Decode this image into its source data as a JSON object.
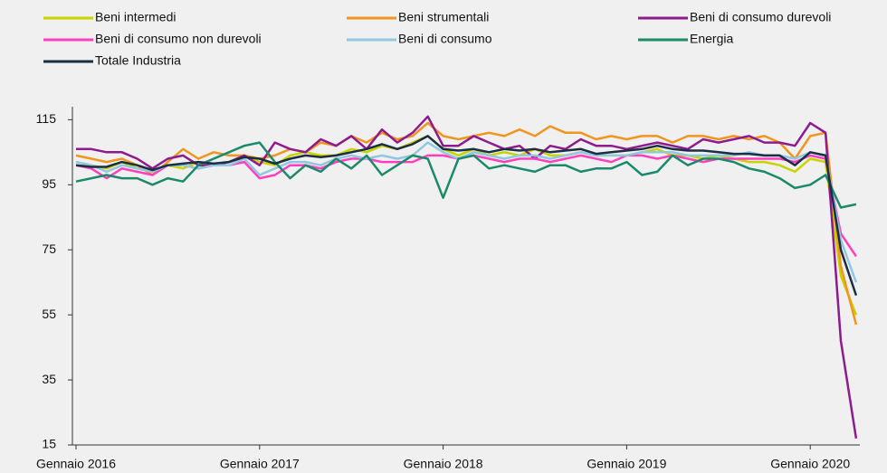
{
  "chart_data": {
    "type": "line",
    "categories": [
      "Gennaio 2016",
      null,
      null,
      null,
      null,
      null,
      null,
      null,
      null,
      null,
      null,
      null,
      "Gennaio 2017",
      null,
      null,
      null,
      null,
      null,
      null,
      null,
      null,
      null,
      null,
      null,
      "Gennaio 2018",
      null,
      null,
      null,
      null,
      null,
      null,
      null,
      null,
      null,
      null,
      null,
      "Gennaio 2019",
      null,
      null,
      null,
      null,
      null,
      null,
      null,
      null,
      null,
      null,
      null,
      "Gennaio 2020",
      null,
      null,
      null
    ],
    "ylim": [
      15,
      119
    ],
    "yticks": [
      15,
      35,
      55,
      75,
      95,
      115
    ],
    "grid": false,
    "series": [
      {
        "name": "Beni intermedi",
        "color": "#c8d400",
        "values": [
          102,
          101,
          100,
          102,
          100,
          99,
          101,
          100,
          102,
          101,
          102,
          104,
          102,
          101,
          104,
          105,
          104,
          104,
          106,
          105,
          107,
          106,
          108,
          110,
          106,
          104,
          106,
          104,
          105,
          104,
          106,
          104,
          104,
          105,
          104,
          104,
          104,
          105,
          106,
          104,
          104,
          103,
          104,
          103,
          102,
          102,
          101,
          99,
          103,
          102,
          67,
          55
        ]
      },
      {
        "name": "Beni strumentali",
        "color": "#f0961e",
        "values": [
          104,
          103,
          102,
          103,
          101,
          98,
          102,
          106,
          103,
          105,
          104,
          104,
          103,
          104,
          106,
          105,
          108,
          107,
          110,
          108,
          111,
          109,
          110,
          114,
          110,
          109,
          110,
          111,
          110,
          112,
          110,
          113,
          111,
          111,
          109,
          110,
          109,
          110,
          110,
          108,
          110,
          110,
          109,
          110,
          109,
          110,
          108,
          103,
          110,
          111,
          70,
          52
        ]
      },
      {
        "name": "Beni di consumo durevoli",
        "color": "#8e1b8e",
        "values": [
          106,
          106,
          105,
          105,
          103,
          100,
          103,
          104,
          101,
          101,
          102,
          104,
          101,
          108,
          106,
          105,
          109,
          107,
          110,
          106,
          112,
          108,
          111,
          116,
          107,
          107,
          110,
          108,
          106,
          107,
          103,
          107,
          106,
          109,
          107,
          107,
          106,
          107,
          108,
          107,
          106,
          109,
          108,
          109,
          110,
          108,
          108,
          107,
          114,
          111,
          47,
          17
        ]
      },
      {
        "name": "Beni di consumo non durevoli",
        "color": "#ff3fbf",
        "values": [
          101,
          100,
          97,
          100,
          99,
          98,
          101,
          101,
          100,
          101,
          101,
          102,
          97,
          98,
          101,
          101,
          100,
          102,
          103,
          103,
          102,
          102,
          102,
          104,
          104,
          103,
          104,
          103,
          102,
          103,
          103,
          102,
          103,
          104,
          103,
          102,
          104,
          104,
          103,
          104,
          103,
          102,
          103,
          103,
          103,
          103,
          103,
          102,
          104,
          103,
          80,
          73
        ]
      },
      {
        "name": "Beni di consumo",
        "color": "#8fc8e0",
        "values": [
          102,
          101,
          99,
          101,
          100,
          99,
          101,
          101,
          100,
          101,
          101,
          103,
          98,
          100,
          102,
          102,
          101,
          103,
          104,
          103,
          104,
          103,
          104,
          108,
          105,
          103,
          105,
          104,
          103,
          104,
          104,
          103,
          104,
          105,
          104,
          104,
          104,
          105,
          105,
          105,
          104,
          104,
          104,
          104,
          105,
          104,
          104,
          103,
          105,
          104,
          78,
          65
        ]
      },
      {
        "name": "Energia",
        "color": "#1a8a6a",
        "values": [
          96,
          97,
          98,
          97,
          97,
          95,
          97,
          96,
          101,
          103,
          105,
          107,
          108,
          102,
          97,
          101,
          99,
          103,
          100,
          104,
          98,
          101,
          104,
          103,
          91,
          103,
          104,
          100,
          101,
          100,
          99,
          101,
          101,
          99,
          100,
          100,
          102,
          98,
          99,
          104,
          101,
          103,
          103,
          102,
          100,
          99,
          97,
          94,
          95,
          98,
          88,
          89
        ]
      },
      {
        "name": "Totale Industria",
        "color": "#1a2e45",
        "values": [
          101,
          100.5,
          100.5,
          102,
          101,
          99.5,
          101,
          101.5,
          102,
          101.5,
          102,
          103.5,
          103,
          101.5,
          103,
          104,
          103.5,
          104,
          105,
          106,
          107.5,
          106,
          107.5,
          110,
          106,
          105.5,
          106,
          105,
          106,
          105.5,
          106,
          105,
          105.5,
          106,
          104.5,
          105,
          105.5,
          106,
          107,
          106,
          105.5,
          105.5,
          105,
          104.5,
          104.5,
          104,
          104,
          101,
          105,
          104,
          75,
          61
        ]
      }
    ]
  }
}
